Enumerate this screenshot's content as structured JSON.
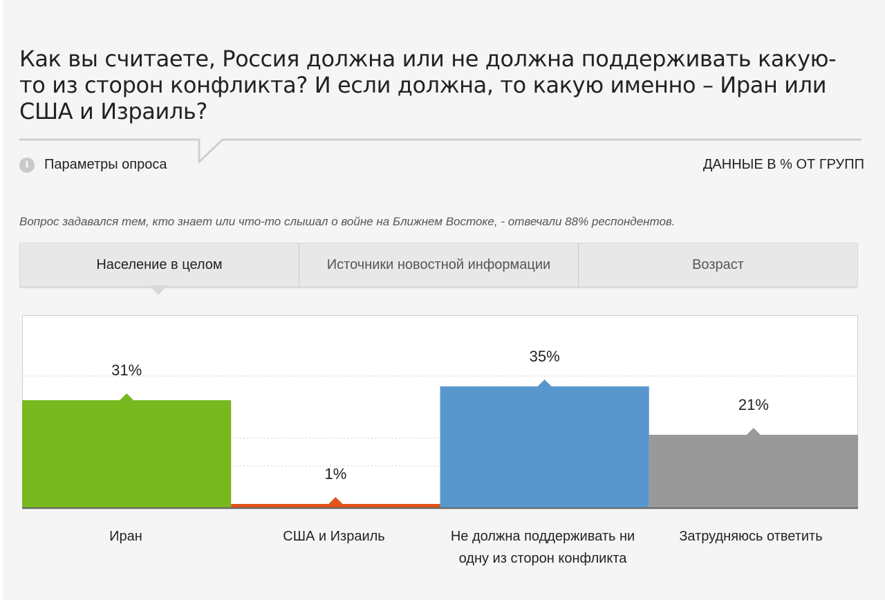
{
  "title": "Как вы считаете, Россия должна или не должна поддерживать какую-то из сторон конфликта? И если должна, то какую именно – Иран или США и Израиль?",
  "params_link": "Параметры опроса",
  "info_icon": "info-icon",
  "data_note": "ДАННЫЕ В % ОТ ГРУПП",
  "question_note": "Вопрос задавался тем, кто знает или что-то слышал о войне на Ближнем Востоке, - отвечали 88% респондентов.",
  "tabs": [
    {
      "label": "Население в целом",
      "active": true
    },
    {
      "label": "Источники новостной информации",
      "active": false
    },
    {
      "label": "Возраст",
      "active": false
    }
  ],
  "chart_data": {
    "type": "bar",
    "title": "",
    "xlabel": "",
    "ylabel": "",
    "categories": [
      "Иран",
      "США и Израиль",
      "Не должна поддерживать ни одну из сторон конфликта",
      "Затрудняюсь ответить"
    ],
    "values": [
      31,
      1,
      35,
      21
    ],
    "value_labels": [
      "31%",
      "1%",
      "35%",
      "21%"
    ],
    "colors": [
      "#77b81e",
      "#e3531b",
      "#5897cd",
      "#999999"
    ],
    "ylim": [
      0,
      48
    ],
    "grid": true,
    "legend": "none"
  }
}
